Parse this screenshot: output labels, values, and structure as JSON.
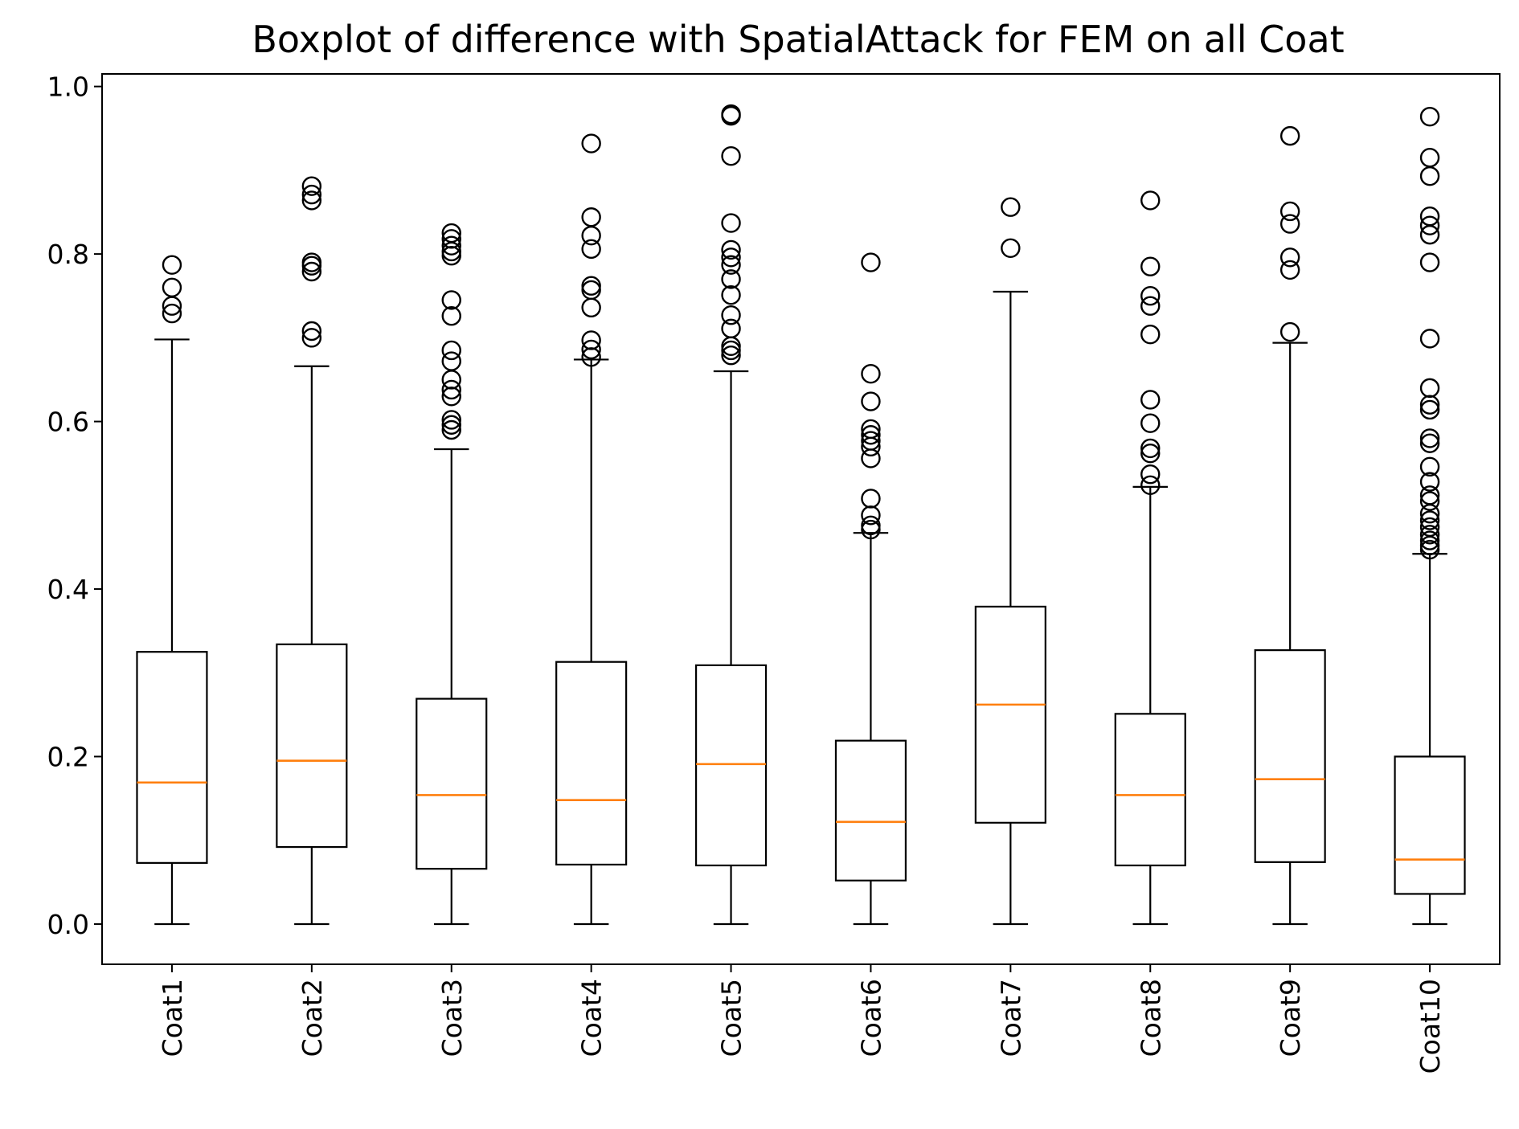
{
  "chart_data": {
    "type": "boxplot",
    "title": "Boxplot of difference with SpatialAttack for FEM on all Coat",
    "xlabel": "",
    "ylabel": "",
    "ylim": [
      -0.048,
      1.015
    ],
    "yticks": [
      0.0,
      0.2,
      0.4,
      0.6,
      0.8,
      1.0
    ],
    "ytick_labels": [
      "0.0",
      "0.2",
      "0.4",
      "0.6",
      "0.8",
      "1.0"
    ],
    "grid": false,
    "categories": [
      "Coat1",
      "Coat2",
      "Coat3",
      "Coat4",
      "Coat5",
      "Coat6",
      "Coat7",
      "Coat8",
      "Coat9",
      "Coat10"
    ],
    "boxes": [
      {
        "label": "Coat1",
        "whisker_low": 0.0,
        "q1": 0.073,
        "median": 0.169,
        "q3": 0.325,
        "whisker_high": 0.698,
        "outliers": [
          0.787,
          0.76,
          0.738,
          0.729
        ]
      },
      {
        "label": "Coat2",
        "whisker_low": 0.0,
        "q1": 0.092,
        "median": 0.195,
        "q3": 0.334,
        "whisker_high": 0.666,
        "outliers": [
          0.881,
          0.871,
          0.864,
          0.79,
          0.786,
          0.779,
          0.708,
          0.7
        ]
      },
      {
        "label": "Coat3",
        "whisker_low": 0.0,
        "q1": 0.066,
        "median": 0.154,
        "q3": 0.269,
        "whisker_high": 0.567,
        "outliers": [
          0.825,
          0.818,
          0.81,
          0.803,
          0.798,
          0.745,
          0.726,
          0.685,
          0.672,
          0.65,
          0.638,
          0.63,
          0.602,
          0.596,
          0.59
        ]
      },
      {
        "label": "Coat4",
        "whisker_low": 0.0,
        "q1": 0.071,
        "median": 0.148,
        "q3": 0.313,
        "whisker_high": 0.674,
        "outliers": [
          0.932,
          0.844,
          0.822,
          0.806,
          0.762,
          0.757,
          0.736,
          0.697,
          0.686,
          0.677
        ]
      },
      {
        "label": "Coat5",
        "whisker_low": 0.0,
        "q1": 0.07,
        "median": 0.191,
        "q3": 0.309,
        "whisker_high": 0.66,
        "outliers": [
          0.967,
          0.965,
          0.917,
          0.837,
          0.805,
          0.796,
          0.787,
          0.77,
          0.751,
          0.727,
          0.711,
          0.69,
          0.685,
          0.679
        ]
      },
      {
        "label": "Coat6",
        "whisker_low": 0.0,
        "q1": 0.052,
        "median": 0.122,
        "q3": 0.219,
        "whisker_high": 0.467,
        "outliers": [
          0.79,
          0.657,
          0.624,
          0.591,
          0.584,
          0.577,
          0.57,
          0.556,
          0.508,
          0.488,
          0.476,
          0.471
        ]
      },
      {
        "label": "Coat7",
        "whisker_low": 0.0,
        "q1": 0.121,
        "median": 0.262,
        "q3": 0.379,
        "whisker_high": 0.755,
        "outliers": [
          0.856,
          0.807
        ]
      },
      {
        "label": "Coat8",
        "whisker_low": 0.0,
        "q1": 0.07,
        "median": 0.154,
        "q3": 0.251,
        "whisker_high": 0.522,
        "outliers": [
          0.864,
          0.785,
          0.75,
          0.738,
          0.704,
          0.626,
          0.598,
          0.568,
          0.562,
          0.537,
          0.524
        ]
      },
      {
        "label": "Coat9",
        "whisker_low": 0.0,
        "q1": 0.074,
        "median": 0.173,
        "q3": 0.327,
        "whisker_high": 0.694,
        "outliers": [
          0.941,
          0.851,
          0.836,
          0.796,
          0.781,
          0.707
        ]
      },
      {
        "label": "Coat10",
        "whisker_low": 0.0,
        "q1": 0.036,
        "median": 0.077,
        "q3": 0.2,
        "whisker_high": 0.442,
        "outliers": [
          0.964,
          0.915,
          0.893,
          0.845,
          0.834,
          0.823,
          0.79,
          0.699,
          0.64,
          0.62,
          0.614,
          0.58,
          0.574,
          0.546,
          0.528,
          0.512,
          0.505,
          0.49,
          0.482,
          0.474,
          0.465,
          0.458,
          0.452,
          0.447
        ]
      }
    ],
    "colors": {
      "box": "#000000",
      "median": "#ff7f0e",
      "outlier_edge": "#000000",
      "background": "#ffffff"
    }
  }
}
